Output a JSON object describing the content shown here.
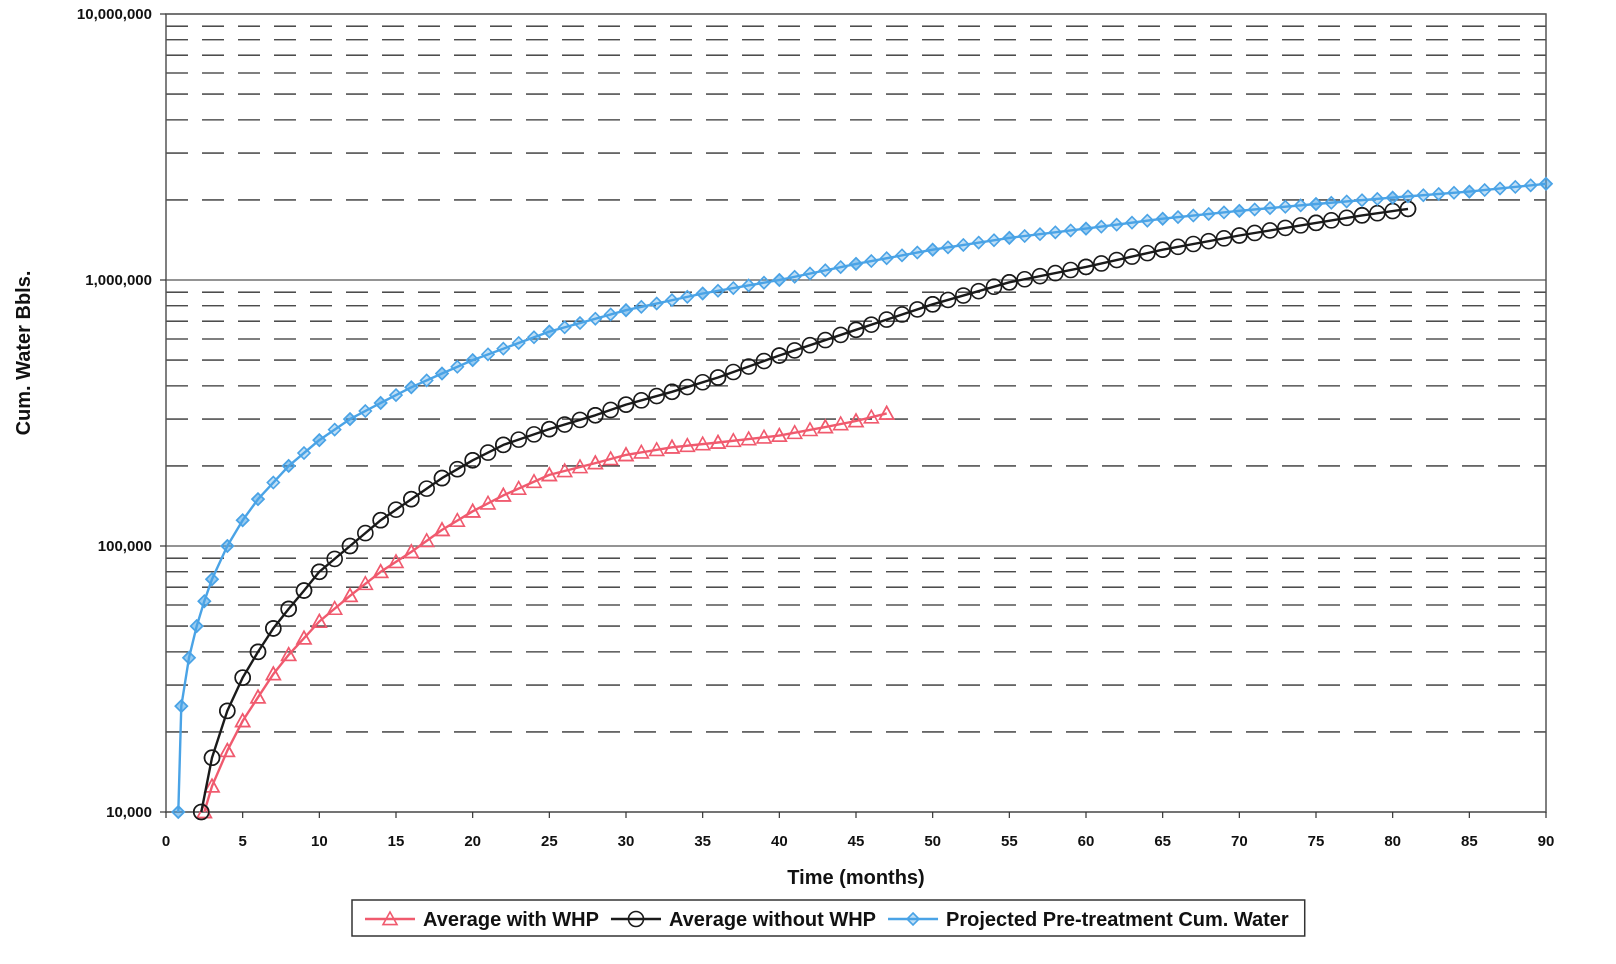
{
  "chart_data": {
    "type": "line",
    "title": "",
    "xlabel": "Time (months)",
    "ylabel": "Cum. Water Bbls.",
    "xlim": [
      0,
      90
    ],
    "ylim": [
      10000,
      10000000
    ],
    "y_scale": "log",
    "x_ticks": [
      0,
      5,
      10,
      15,
      20,
      25,
      30,
      35,
      40,
      45,
      50,
      55,
      60,
      65,
      70,
      75,
      80,
      85,
      90
    ],
    "x_tick_labels": [
      "0",
      "5",
      "10",
      "15",
      "20",
      "25",
      "30",
      "35",
      "40",
      "45",
      "50",
      "55",
      "60",
      "65",
      "70",
      "75",
      "80",
      "85",
      "90"
    ],
    "y_ticks": [
      10000,
      100000,
      1000000,
      10000000
    ],
    "y_tick_labels": [
      "10,000",
      "100,000",
      "1,000,000",
      "10,000,000"
    ],
    "grid": {
      "major": "solid",
      "minor": "dashed"
    },
    "legend_position": "bottom",
    "series": [
      {
        "name": "Average with WHP",
        "color": "#f05a6e",
        "marker": "triangle",
        "x": [
          2.5,
          3,
          4,
          5,
          6,
          7,
          8,
          9,
          10,
          12,
          14,
          16,
          18,
          20,
          22,
          25,
          28,
          30,
          33,
          36,
          40,
          43,
          45,
          47
        ],
        "y": [
          10000,
          12500,
          17000,
          22000,
          27000,
          33000,
          39000,
          45000,
          52000,
          65000,
          80000,
          95000,
          115000,
          135000,
          155000,
          185000,
          205000,
          220000,
          235000,
          245000,
          260000,
          280000,
          295000,
          315000
        ]
      },
      {
        "name": "Average without WHP",
        "color": "#1a1a1a",
        "marker": "circle",
        "x": [
          2.3,
          3,
          4,
          5,
          6,
          7,
          8,
          9,
          10,
          12,
          14,
          16,
          18,
          20,
          22,
          25,
          28,
          30,
          33,
          36,
          40,
          45,
          50,
          55,
          60,
          65,
          70,
          75,
          78,
          81
        ],
        "y": [
          10000,
          16000,
          24000,
          32000,
          40000,
          49000,
          58000,
          68000,
          80000,
          100000,
          125000,
          150000,
          180000,
          210000,
          240000,
          275000,
          310000,
          340000,
          380000,
          430000,
          520000,
          650000,
          810000,
          980000,
          1120000,
          1300000,
          1470000,
          1640000,
          1750000,
          1850000
        ]
      },
      {
        "name": "Projected Pre-treatment Cum. Water",
        "color": "#4aa3e6",
        "marker": "diamond",
        "x": [
          0.8,
          1,
          1.5,
          2,
          2.5,
          3,
          4,
          5,
          6,
          8,
          10,
          12,
          14,
          16,
          18,
          20,
          25,
          30,
          35,
          40,
          45,
          50,
          55,
          60,
          65,
          70,
          75,
          80,
          85,
          90
        ],
        "y": [
          10000,
          25000,
          38000,
          50000,
          62000,
          75000,
          100000,
          125000,
          150000,
          200000,
          250000,
          300000,
          345000,
          395000,
          445000,
          500000,
          640000,
          770000,
          890000,
          1000000,
          1150000,
          1300000,
          1440000,
          1560000,
          1700000,
          1820000,
          1930000,
          2040000,
          2150000,
          2300000
        ]
      }
    ]
  }
}
